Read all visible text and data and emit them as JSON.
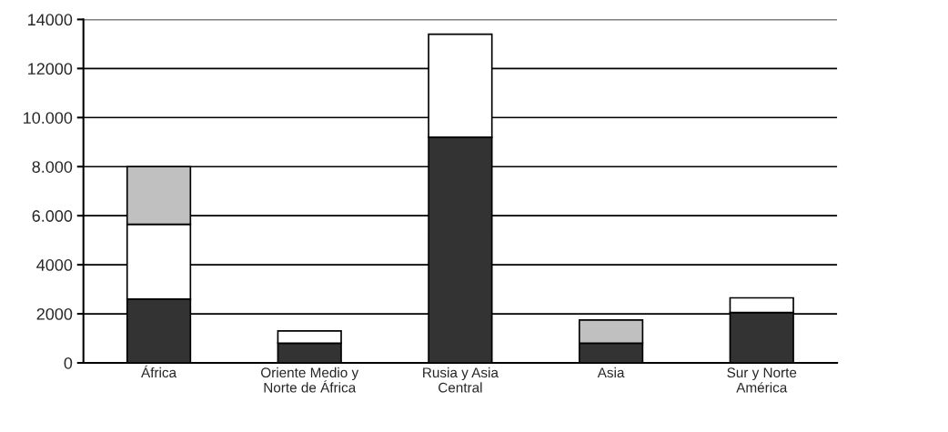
{
  "chart_data": {
    "type": "bar",
    "stacked": true,
    "categories": [
      "África",
      "Oriente Medio y\nNorte de África",
      "Rusia y Asia\nCentral",
      "Asia",
      "Sur y Norte\nAmérica"
    ],
    "series": [
      {
        "color": "#333333",
        "values": [
          2600,
          800,
          9200,
          800,
          2050
        ]
      },
      {
        "color": "#ffffff",
        "values": [
          3050,
          500,
          4200,
          null,
          600
        ]
      },
      {
        "color": "#c0c0c0",
        "values": [
          2350,
          null,
          null,
          950,
          null
        ]
      }
    ],
    "ylim": [
      0,
      14000
    ],
    "yticks": [
      0,
      2000,
      4000,
      {
        "value": 6000,
        "label": "6.000"
      },
      {
        "value": 8000,
        "label": "8.000"
      },
      {
        "value": 10000,
        "label": "10.000"
      },
      12000,
      14000
    ],
    "grid": "y"
  }
}
